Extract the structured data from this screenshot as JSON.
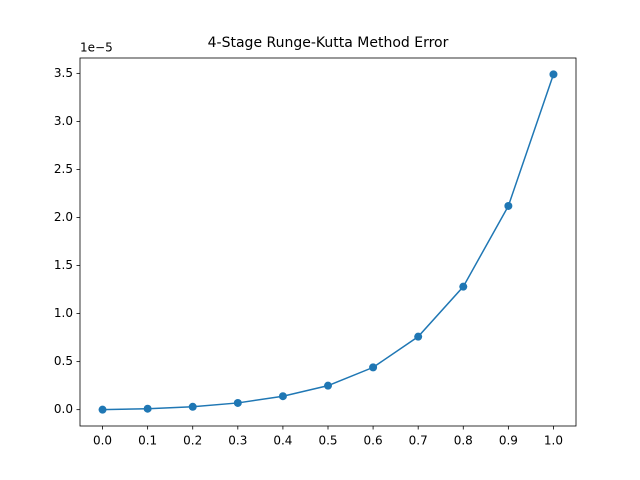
{
  "chart_data": {
    "type": "line",
    "title": "4-Stage Runge-Kutta Method Error",
    "offset_label": "1e−5",
    "x": [
      0.0,
      0.1,
      0.2,
      0.3,
      0.4,
      0.5,
      0.6,
      0.7,
      0.8,
      0.9,
      1.0
    ],
    "series": [
      {
        "color": "#1f77b4",
        "values": [
          0,
          0.01,
          0.03,
          0.07,
          0.14,
          0.25,
          0.44,
          0.76,
          1.28,
          2.12,
          3.49
        ]
      }
    ],
    "xlim": [
      -0.05,
      1.05
    ],
    "xticks": [
      {
        "value": 0,
        "label": "0.0"
      },
      {
        "value": 0.1,
        "label": "0.1"
      },
      {
        "value": 0.2,
        "label": "0.2"
      },
      {
        "value": 0.3,
        "label": "0.3"
      },
      {
        "value": 0.4,
        "label": "0.4"
      },
      {
        "value": 0.5,
        "label": "0.5"
      },
      {
        "value": 0.6,
        "label": "0.6"
      },
      {
        "value": 0.7,
        "label": "0.7"
      },
      {
        "value": 0.8,
        "label": "0.8"
      },
      {
        "value": 0.9,
        "label": "0.9"
      },
      {
        "value": 1,
        "label": "1.0"
      }
    ],
    "ylim": [
      -0.17,
      3.66
    ],
    "yticks": [
      {
        "value": 0,
        "label": "0.0"
      },
      0.5,
      {
        "value": 1,
        "label": "1.0"
      },
      1.5,
      {
        "value": 2,
        "label": "2.0"
      },
      2.5,
      {
        "value": 3,
        "label": "3.0"
      },
      3.5
    ]
  }
}
